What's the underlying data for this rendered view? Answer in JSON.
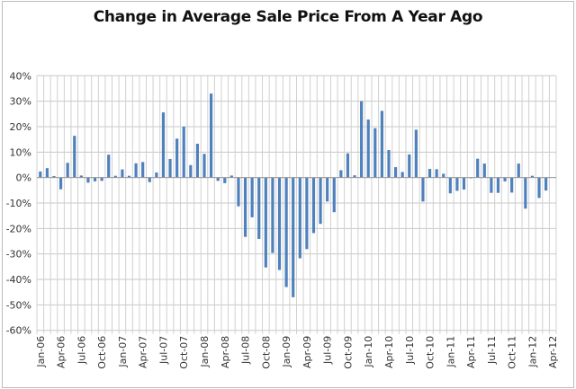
{
  "chart_data": {
    "type": "bar",
    "title": "Change in Average Sale Price From A Year Ago",
    "xlabel": "",
    "ylabel": "",
    "ylim": [
      -60,
      40
    ],
    "ytick_step": 10,
    "ytick_labels": [
      "40%",
      "30%",
      "20%",
      "10%",
      "0%",
      "-10%",
      "-20%",
      "-30%",
      "-40%",
      "-50%",
      "-60%"
    ],
    "grid": true,
    "legend": "none",
    "bar_color": "#4f81bd",
    "x_tick_labels": [
      "Jan-06",
      "Apr-06",
      "Jul-06",
      "Oct-06",
      "Jan-07",
      "Apr-07",
      "Jul-07",
      "Oct-07",
      "Jan-08",
      "Apr-08",
      "Jul-08",
      "Oct-08",
      "Jan-09",
      "Apr-09",
      "Jul-09",
      "Oct-09",
      "Jan-10",
      "Apr-10",
      "Jul-10",
      "Oct-10",
      "Jan-11",
      "Apr-11",
      "Jul-11",
      "Oct-11",
      "Jan-12",
      "Apr-12"
    ],
    "categories": [
      "Jan-06",
      "Feb-06",
      "Mar-06",
      "Apr-06",
      "May-06",
      "Jun-06",
      "Jul-06",
      "Aug-06",
      "Sep-06",
      "Oct-06",
      "Nov-06",
      "Dec-06",
      "Jan-07",
      "Feb-07",
      "Mar-07",
      "Apr-07",
      "May-07",
      "Jun-07",
      "Jul-07",
      "Aug-07",
      "Sep-07",
      "Oct-07",
      "Nov-07",
      "Dec-07",
      "Jan-08",
      "Feb-08",
      "Mar-08",
      "Apr-08",
      "May-08",
      "Jun-08",
      "Jul-08",
      "Aug-08",
      "Sep-08",
      "Oct-08",
      "Nov-08",
      "Dec-08",
      "Jan-09",
      "Feb-09",
      "Mar-09",
      "Apr-09",
      "May-09",
      "Jun-09",
      "Jul-09",
      "Aug-09",
      "Sep-09",
      "Oct-09",
      "Nov-09",
      "Dec-09",
      "Jan-10",
      "Feb-10",
      "Mar-10",
      "Apr-10",
      "May-10",
      "Jun-10",
      "Jul-10",
      "Aug-10",
      "Sep-10",
      "Oct-10",
      "Nov-10",
      "Dec-10",
      "Jan-11",
      "Feb-11",
      "Mar-11",
      "Apr-11",
      "May-11",
      "Jun-11",
      "Jul-11",
      "Aug-11",
      "Sep-11",
      "Oct-11",
      "Nov-11",
      "Dec-11",
      "Jan-12",
      "Feb-12",
      "Mar-12",
      "Apr-12"
    ],
    "values": [
      2.4,
      3.7,
      0.6,
      -4.6,
      5.8,
      16.4,
      0.8,
      -2.0,
      -1.5,
      -1.3,
      9.0,
      0.7,
      3.2,
      0.7,
      5.6,
      6.1,
      -1.8,
      2.0,
      25.6,
      7.3,
      15.3,
      20.0,
      4.9,
      13.3,
      9.3,
      33.0,
      -1.3,
      -2.2,
      0.8,
      -11.3,
      -23.3,
      -15.6,
      -24.1,
      -35.3,
      -29.6,
      -36.3,
      -43.0,
      -47.0,
      -31.7,
      -28.1,
      -21.8,
      -18.2,
      -9.4,
      -13.6,
      2.9,
      9.5,
      0.9,
      30.0,
      22.8,
      19.4,
      26.2,
      10.8,
      4.1,
      2.2,
      9.1,
      18.8,
      -9.4,
      3.4,
      3.3,
      1.5,
      -6.2,
      -5.2,
      -4.7,
      -0.2,
      7.4,
      5.5,
      -6.0,
      -6.0,
      -1.5,
      -5.9,
      5.5,
      -12.2,
      0.7,
      -8.0,
      -5.1,
      null
    ]
  }
}
